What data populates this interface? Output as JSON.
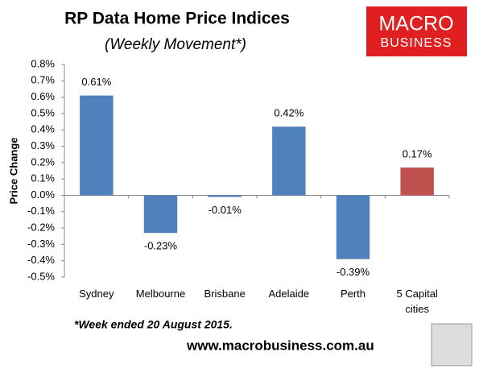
{
  "chart_data": {
    "type": "bar",
    "title": "RP Data Home Price Indices",
    "subtitle": "(Weekly Movement*)",
    "y_label": "Price Change",
    "categories": [
      "Sydney",
      "Melbourne",
      "Brisbane",
      "Adelaide",
      "Perth",
      "5 Capital cities"
    ],
    "values": [
      0.61,
      -0.23,
      -0.01,
      0.42,
      -0.39,
      0.17
    ],
    "value_labels": [
      "0.61%",
      "-0.23%",
      "-0.01%",
      "0.42%",
      "-0.39%",
      "0.17%"
    ],
    "colors": [
      "#4f81bd",
      "#4f81bd",
      "#4f81bd",
      "#4f81bd",
      "#4f81bd",
      "#c0504d"
    ],
    "ylim": [
      -0.5,
      0.8
    ],
    "yticks": [
      {
        "value": -0.5,
        "label": "-0.5%"
      },
      {
        "value": -0.4,
        "label": "-0.4%"
      },
      {
        "value": -0.3,
        "label": "-0.3%"
      },
      {
        "value": -0.2,
        "label": "-0.2%"
      },
      {
        "value": -0.1,
        "label": "-0.1%"
      },
      {
        "value": 0,
        "label": "0.0%"
      },
      {
        "value": 0.1,
        "label": "0.1%"
      },
      {
        "value": 0.2,
        "label": "0.2%"
      },
      {
        "value": 0.3,
        "label": "0.3%"
      },
      {
        "value": 0.4,
        "label": "0.4%"
      },
      {
        "value": 0.5,
        "label": "0.5%"
      },
      {
        "value": 0.6,
        "label": "0.6%"
      },
      {
        "value": 0.7,
        "label": "0.7%"
      },
      {
        "value": 0.8,
        "label": "0.8%"
      }
    ],
    "footnote": "*Week ended 20 August 2015.",
    "source": "www.macrobusiness.com.au"
  },
  "logo": {
    "line1": "MACRO",
    "line2": "BUSINESS"
  }
}
